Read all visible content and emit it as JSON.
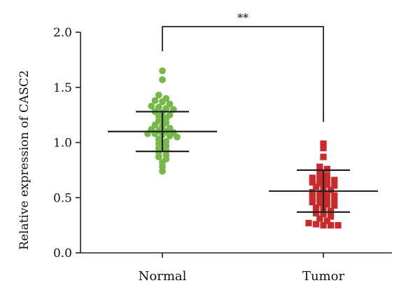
{
  "chart_data": {
    "type": "scatter",
    "title": "",
    "xlabel": "",
    "ylabel": "Relative expression of CASC2",
    "ylim": [
      0,
      2
    ],
    "y_ticks": [
      "0.0",
      "0.5",
      "1.0",
      "1.5",
      "2.0"
    ],
    "categories": [
      "Normal",
      "Tumor"
    ],
    "grid": false,
    "significance": "**",
    "series": [
      {
        "category": "Normal",
        "color": "#77b84a",
        "marker": "circle",
        "mean": 1.1,
        "sd_low": 0.92,
        "sd_high": 1.28,
        "values": [
          1.65,
          1.57,
          1.43,
          1.4,
          1.38,
          1.37,
          1.35,
          1.33,
          1.32,
          1.31,
          1.3,
          1.28,
          1.27,
          1.25,
          1.24,
          1.22,
          1.2,
          1.18,
          1.16,
          1.15,
          1.13,
          1.12,
          1.11,
          1.1,
          1.09,
          1.08,
          1.08,
          1.07,
          1.06,
          1.05,
          1.03,
          1.01,
          0.99,
          0.97,
          0.95,
          0.93,
          0.91,
          0.89,
          0.87,
          0.85,
          0.82,
          0.78,
          0.74
        ]
      },
      {
        "category": "Tumor",
        "color": "#cc2a2a",
        "marker": "square",
        "mean": 0.56,
        "sd_low": 0.37,
        "sd_high": 0.75,
        "values": [
          0.99,
          0.95,
          0.87,
          0.78,
          0.76,
          0.72,
          0.7,
          0.68,
          0.67,
          0.66,
          0.66,
          0.64,
          0.63,
          0.62,
          0.61,
          0.6,
          0.58,
          0.57,
          0.55,
          0.54,
          0.53,
          0.52,
          0.5,
          0.49,
          0.48,
          0.47,
          0.46,
          0.45,
          0.44,
          0.43,
          0.41,
          0.4,
          0.38,
          0.36,
          0.35,
          0.33,
          0.31,
          0.29,
          0.27,
          0.26,
          0.25,
          0.25,
          0.25
        ]
      }
    ]
  }
}
